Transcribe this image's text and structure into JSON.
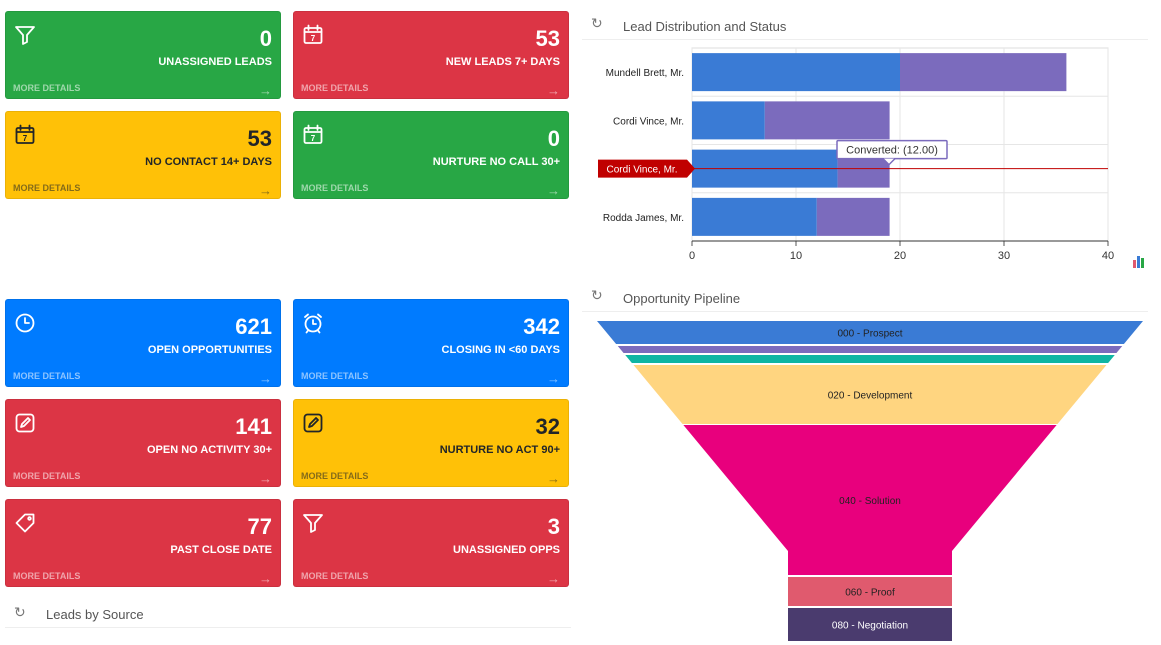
{
  "tiles": [
    {
      "value": "0",
      "label": "UNASSIGNED LEADS",
      "more": "MORE DETAILS",
      "icon": "filter-icon",
      "color": "green"
    },
    {
      "value": "53",
      "label": "NEW LEADS 7+ DAYS",
      "more": "MORE DETAILS",
      "icon": "calendar-icon",
      "color": "red"
    },
    {
      "value": "53",
      "label": "NO CONTACT 14+ DAYS",
      "more": "MORE DETAILS",
      "icon": "calendar-icon",
      "color": "yellow"
    },
    {
      "value": "0",
      "label": "NURTURE NO CALL 30+",
      "more": "MORE DETAILS",
      "icon": "calendar-icon",
      "color": "green"
    },
    {
      "value": "621",
      "label": "OPEN OPPORTUNITIES",
      "more": "MORE DETAILS",
      "icon": "clock-icon",
      "color": "blue"
    },
    {
      "value": "342",
      "label": "CLOSING IN <60 DAYS",
      "more": "MORE DETAILS",
      "icon": "alarm-clock-icon",
      "color": "blue"
    },
    {
      "value": "141",
      "label": "OPEN NO ACTIVITY 30+",
      "more": "MORE DETAILS",
      "icon": "edit-icon",
      "color": "red"
    },
    {
      "value": "32",
      "label": "NURTURE NO ACT 90+",
      "more": "MORE DETAILS",
      "icon": "edit-icon",
      "color": "yellow"
    },
    {
      "value": "77",
      "label": "PAST CLOSE DATE",
      "more": "MORE DETAILS",
      "icon": "tag-icon",
      "color": "red"
    },
    {
      "value": "3",
      "label": "UNASSIGNED OPPS",
      "more": "MORE DETAILS",
      "icon": "filter-icon",
      "color": "red"
    }
  ],
  "calendar_day": "7",
  "arrow_glyph": "→",
  "refresh_glyph": "↻",
  "sections": {
    "lead_distribution": "Lead Distribution and Status",
    "opportunity_pipeline": "Opportunity Pipeline",
    "leads_by_source": "Leads by Source"
  },
  "colors": {
    "green": "#28a745",
    "red": "#dc3545",
    "yellow": "#ffc107",
    "blue": "#007bff",
    "bar_primary": "#3a7bd5",
    "bar_secondary": "#7b6bbd",
    "highlight": "#c00000"
  },
  "chart_data": [
    {
      "type": "bar",
      "orientation": "horizontal",
      "stacked": true,
      "title": "Lead Distribution and Status",
      "categories": [
        "Mundell Brett, Mr.",
        "Cordi Vince, Mr.",
        "Cordi Vince, Mr.",
        "Rodda James, Mr."
      ],
      "series": [
        {
          "color": "#3a7bd5",
          "values": [
            20,
            7,
            14,
            12
          ]
        },
        {
          "color": "#7b6bbd",
          "values": [
            16,
            12,
            5,
            7
          ]
        }
      ],
      "xlim": [
        0,
        40
      ],
      "xticks": [
        "0",
        "10",
        "20",
        "30",
        "40"
      ],
      "grid": true,
      "highlighted_category": "Cordi Vince, Mr.",
      "tooltip": "Converted: (12.00)"
    },
    {
      "type": "funnel",
      "title": "Opportunity Pipeline",
      "stages": [
        {
          "label": "000 - Prospect",
          "color": "#3a7bd5"
        },
        {
          "label": "",
          "color": "#7b6bbd"
        },
        {
          "label": "",
          "color": "#0fb5a3"
        },
        {
          "label": "020 - Development",
          "color": "#ffd580"
        },
        {
          "label": "040 - Solution",
          "color": "#e8007d"
        },
        {
          "label": "060 - Proof",
          "color": "#e05a6e"
        },
        {
          "label": "080 - Negotiation",
          "color": "#4a3b6e"
        }
      ]
    }
  ]
}
